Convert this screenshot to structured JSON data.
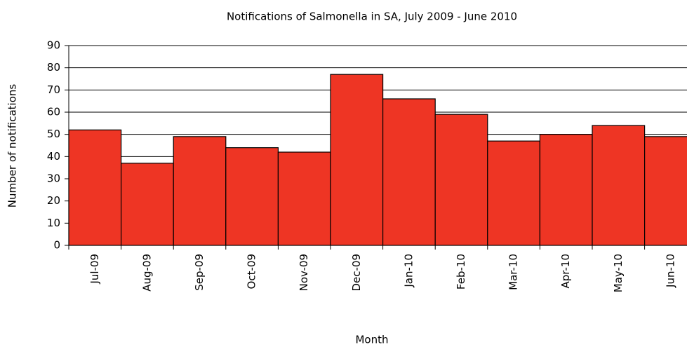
{
  "chart_data": {
    "type": "bar",
    "title": "Notifications of Salmonella in SA, July 2009 - June 2010",
    "x_label": "Month",
    "y_label": "Number of notifications",
    "categories": [
      "Jul-09",
      "Aug-09",
      "Sep-09",
      "Oct-09",
      "Nov-09",
      "Dec-09",
      "Jan-10",
      "Feb-10",
      "Mar-10",
      "Apr-10",
      "May-10",
      "Jun-10"
    ],
    "values": [
      52,
      37,
      49,
      44,
      42,
      77,
      66,
      59,
      47,
      50,
      54,
      49
    ],
    "color": "#ee3524",
    "ylim": [
      0,
      90
    ],
    "yticks": [
      0,
      10,
      20,
      30,
      40,
      50,
      60,
      70,
      80,
      90
    ],
    "grid": true
  }
}
